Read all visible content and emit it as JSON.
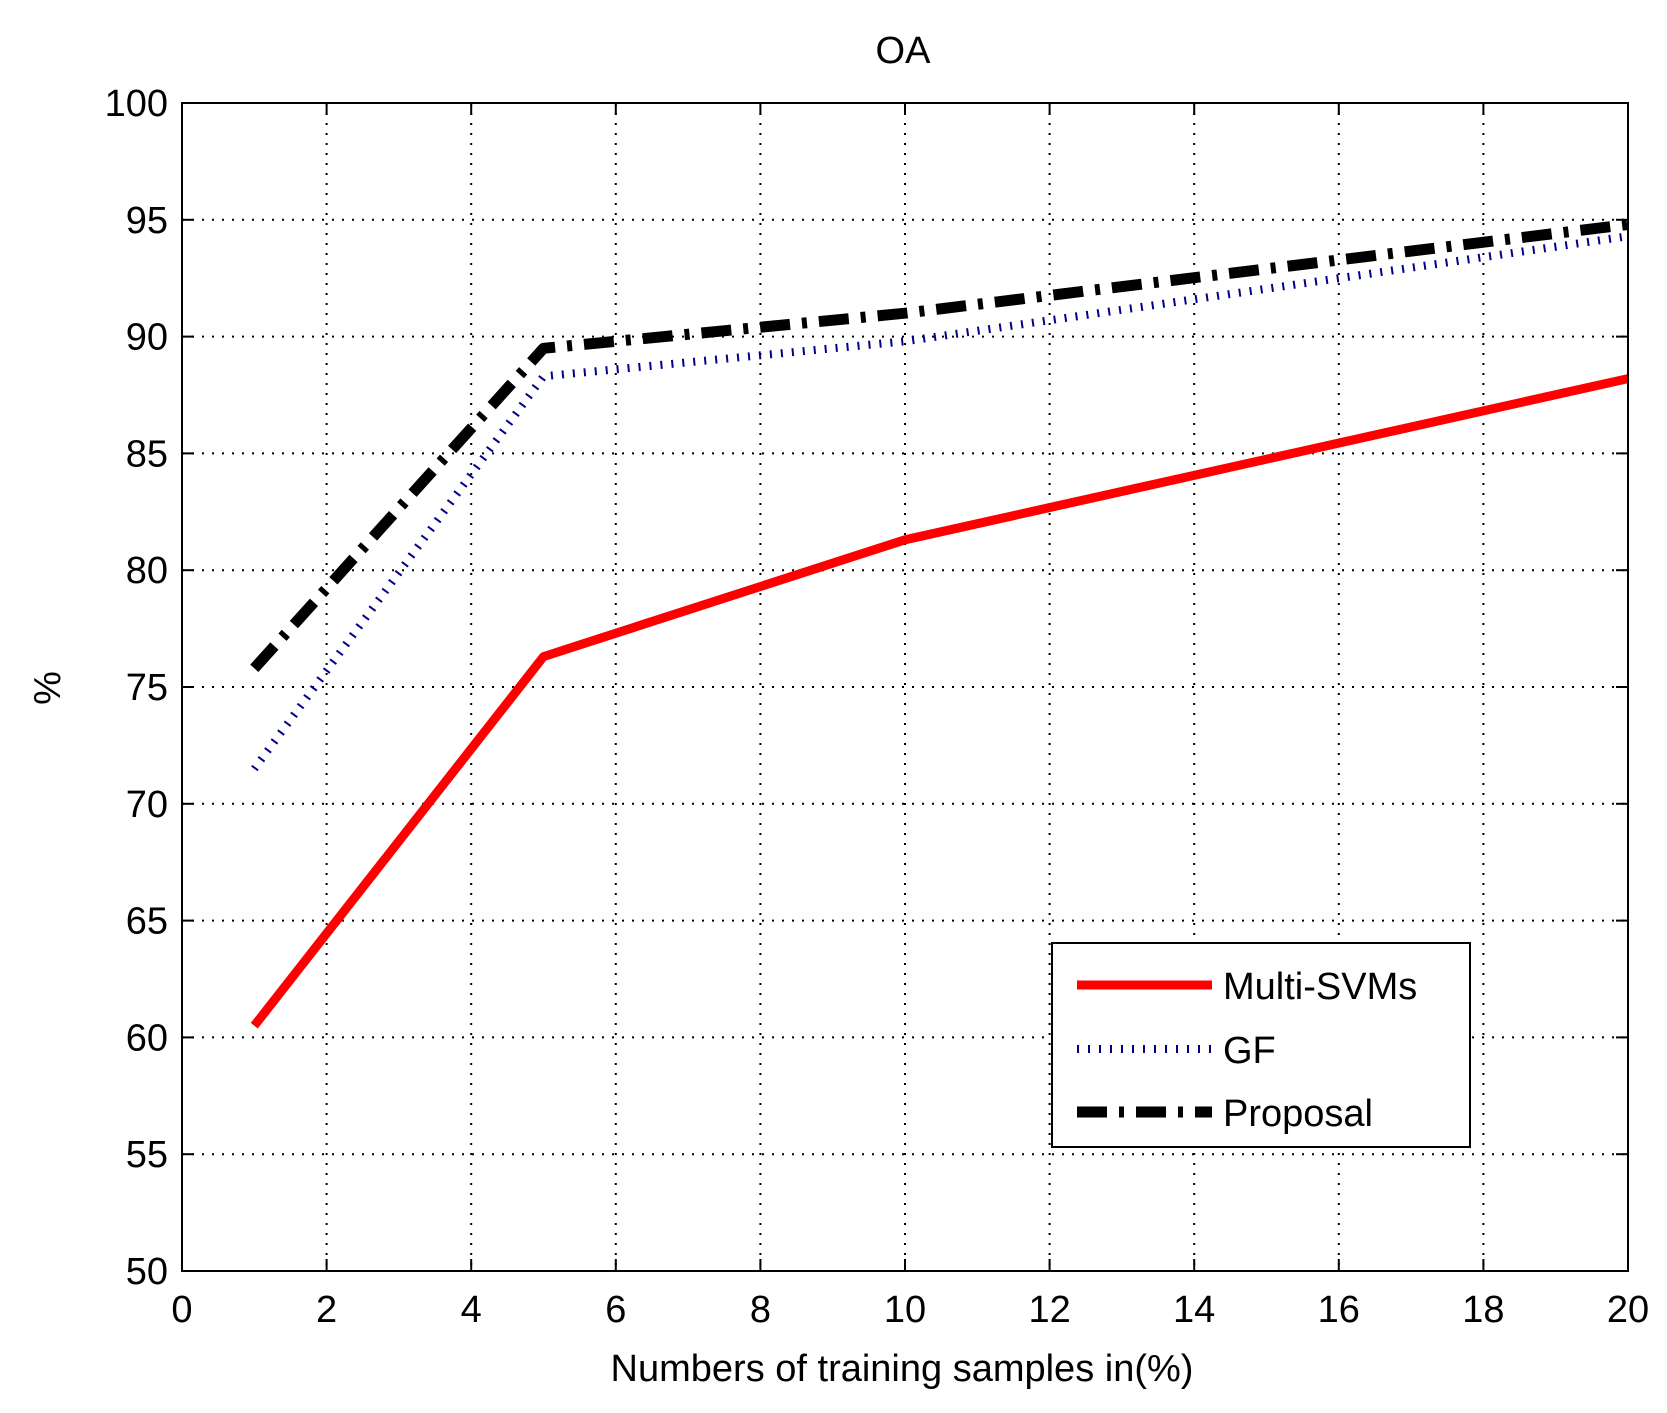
{
  "chart_data": {
    "type": "line",
    "title": "OA",
    "xlabel": "Numbers of training samples in(%)",
    "ylabel": "%",
    "xlim": [
      0,
      20
    ],
    "ylim": [
      50,
      100
    ],
    "xticks": [
      0,
      2,
      4,
      6,
      8,
      10,
      12,
      14,
      16,
      18,
      20
    ],
    "yticks": [
      50,
      55,
      60,
      65,
      70,
      75,
      80,
      85,
      90,
      95,
      100
    ],
    "grid": true,
    "legend_position": "bottom-right",
    "series": [
      {
        "name": "Multi-SVMs",
        "color": "#ff0000",
        "style": "solid",
        "x": [
          1,
          5,
          10,
          20
        ],
        "y": [
          60.5,
          76.3,
          81.3,
          88.2
        ]
      },
      {
        "name": "GF",
        "color": "#00008b",
        "style": "dotted",
        "x": [
          1,
          5,
          10,
          20
        ],
        "y": [
          71.5,
          88.3,
          89.8,
          94.3
        ]
      },
      {
        "name": "Proposal",
        "color": "#000000",
        "style": "dashdot",
        "x": [
          1,
          5,
          10,
          20
        ],
        "y": [
          75.8,
          89.5,
          91.0,
          94.8
        ]
      }
    ]
  }
}
